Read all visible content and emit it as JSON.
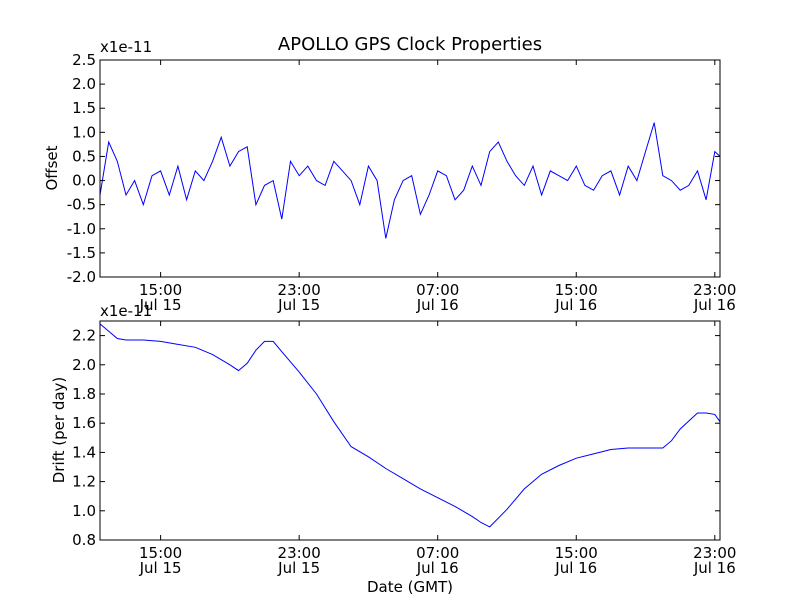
{
  "chart_data": [
    {
      "type": "line",
      "title": "APOLLO GPS Clock Properties",
      "ylabel": "Offset",
      "xlabel": "",
      "exponent_label": "x1e-11",
      "ylim": [
        -2.0,
        2.5
      ],
      "yticks": [
        "-2.0",
        "-1.5",
        "-1.0",
        "-0.5",
        "0.0",
        "0.5",
        "1.0",
        "1.5",
        "2.0",
        "2.5"
      ],
      "xlim_hours": [
        11.5,
        47.3
      ],
      "xticks": [
        {
          "hour": 15,
          "time": "15:00",
          "date": "Jul 15"
        },
        {
          "hour": 23,
          "time": "23:00",
          "date": "Jul 15"
        },
        {
          "hour": 31,
          "time": "07:00",
          "date": "Jul 16"
        },
        {
          "hour": 39,
          "time": "15:00",
          "date": "Jul 16"
        },
        {
          "hour": 47,
          "time": "23:00",
          "date": "Jul 16"
        }
      ],
      "grid": false,
      "line_color": "#0000ff",
      "series": [
        {
          "x": [
            11.5,
            12.0,
            12.5,
            13.0,
            13.5,
            14.0,
            14.5,
            15.0,
            15.5,
            16.0,
            16.5,
            17.0,
            17.5,
            18.0,
            18.5,
            19.0,
            19.5,
            20.0,
            20.5,
            21.0,
            21.5,
            22.0,
            22.5,
            23.0,
            23.5,
            24.0,
            24.5,
            25.0,
            25.5,
            26.0,
            26.5,
            27.0,
            27.5,
            28.0,
            28.5,
            29.0,
            29.5,
            30.0,
            30.5,
            31.0,
            31.5,
            32.0,
            32.5,
            33.0,
            33.5,
            34.0,
            34.5,
            35.0,
            35.5,
            36.0,
            36.5,
            37.0,
            37.5,
            38.0,
            38.5,
            39.0,
            39.5,
            40.0,
            40.5,
            41.0,
            41.5,
            42.0,
            42.5,
            43.0,
            43.5,
            44.0,
            44.5,
            45.0,
            45.5,
            46.0,
            46.5,
            47.0,
            47.3
          ],
          "y": [
            -0.3,
            0.8,
            0.4,
            -0.3,
            0.0,
            -0.5,
            0.1,
            0.2,
            -0.3,
            0.3,
            -0.4,
            0.2,
            0.0,
            0.4,
            0.9,
            0.3,
            0.6,
            0.7,
            -0.5,
            -0.1,
            0.0,
            -0.8,
            0.4,
            0.1,
            0.3,
            0.0,
            -0.1,
            0.4,
            0.2,
            0.0,
            -0.5,
            0.3,
            0.0,
            -1.2,
            -0.4,
            0.0,
            0.1,
            -0.7,
            -0.3,
            0.2,
            0.1,
            -0.4,
            -0.2,
            0.3,
            -0.1,
            0.6,
            0.8,
            0.4,
            0.1,
            -0.1,
            0.3,
            -0.3,
            0.2,
            0.1,
            0.0,
            0.3,
            -0.1,
            -0.2,
            0.1,
            0.2,
            -0.3,
            0.3,
            0.0,
            0.6,
            1.2,
            0.1,
            0.0,
            -0.2,
            -0.1,
            0.2,
            -0.4,
            0.6,
            0.5
          ]
        }
      ]
    },
    {
      "type": "line",
      "title": "",
      "ylabel": "Drift (per day)",
      "xlabel": "Date (GMT)",
      "exponent_label": "x1e-11",
      "ylim": [
        0.8,
        2.3
      ],
      "yticks": [
        "0.8",
        "1.0",
        "1.2",
        "1.4",
        "1.6",
        "1.8",
        "2.0",
        "2.2"
      ],
      "xlim_hours": [
        11.5,
        47.3
      ],
      "xticks": [
        {
          "hour": 15,
          "time": "15:00",
          "date": "Jul 15"
        },
        {
          "hour": 23,
          "time": "23:00",
          "date": "Jul 15"
        },
        {
          "hour": 31,
          "time": "07:00",
          "date": "Jul 16"
        },
        {
          "hour": 39,
          "time": "15:00",
          "date": "Jul 16"
        },
        {
          "hour": 47,
          "time": "23:00",
          "date": "Jul 16"
        }
      ],
      "grid": false,
      "line_color": "#0000ff",
      "series": [
        {
          "x": [
            11.5,
            12.0,
            12.5,
            13.0,
            14.0,
            15.0,
            16.0,
            17.0,
            18.0,
            19.0,
            19.5,
            20.0,
            20.5,
            21.0,
            21.5,
            22.0,
            23.0,
            24.0,
            25.0,
            26.0,
            27.0,
            28.0,
            29.0,
            30.0,
            31.0,
            32.0,
            33.0,
            33.5,
            34.0,
            35.0,
            36.0,
            37.0,
            38.0,
            39.0,
            40.0,
            41.0,
            42.0,
            43.0,
            44.0,
            44.5,
            45.0,
            46.0,
            46.5,
            47.0,
            47.3
          ],
          "y": [
            2.28,
            2.23,
            2.18,
            2.17,
            2.17,
            2.16,
            2.14,
            2.12,
            2.07,
            2.0,
            1.96,
            2.01,
            2.1,
            2.16,
            2.16,
            2.09,
            1.95,
            1.8,
            1.61,
            1.44,
            1.37,
            1.29,
            1.22,
            1.15,
            1.09,
            1.03,
            0.96,
            0.92,
            0.89,
            1.01,
            1.15,
            1.25,
            1.31,
            1.36,
            1.39,
            1.42,
            1.43,
            1.43,
            1.43,
            1.48,
            1.56,
            1.67,
            1.67,
            1.66,
            1.61
          ]
        }
      ]
    }
  ]
}
